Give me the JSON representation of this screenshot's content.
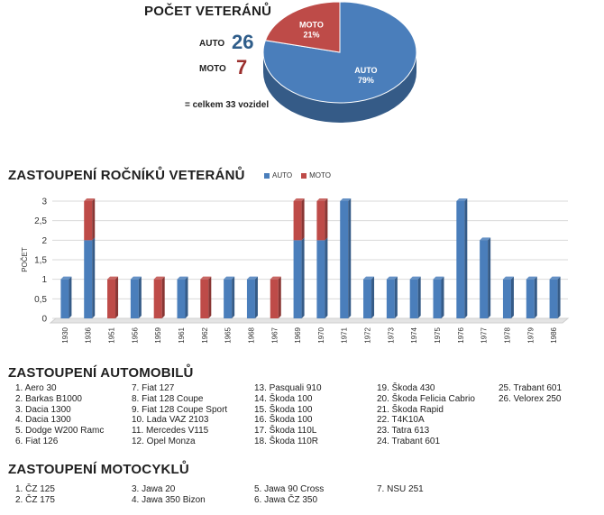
{
  "summary": {
    "title": "POČET VETERÁNŮ",
    "auto_label": "AUTO",
    "auto_count": "26",
    "moto_label": "MOTO",
    "moto_count": "7",
    "total_text": "= celkem 33 vozidel"
  },
  "colors": {
    "auto": "#4a7ebb",
    "moto": "#be4b48"
  },
  "chart_data": [
    {
      "type": "pie",
      "labels": [
        "AUTO",
        "MOTO"
      ],
      "values": [
        26,
        7
      ],
      "percent_labels": [
        "79%",
        "21%"
      ]
    },
    {
      "type": "bar",
      "stacked": true,
      "title": "ZASTOUPENÍ ROČNÍKŮ VETERÁNŮ",
      "ylabel": "POČET",
      "ylim": [
        0,
        3
      ],
      "yticks": [
        "0",
        "0,5",
        "1",
        "1,5",
        "2",
        "2,5",
        "3"
      ],
      "legend_position": "top",
      "grid": true,
      "categories": [
        "1930",
        "1936",
        "1951",
        "1956",
        "1959",
        "1961",
        "1962",
        "1965",
        "1968",
        "1967",
        "1969",
        "1970",
        "1971",
        "1972",
        "1973",
        "1974",
        "1975",
        "1976",
        "1977",
        "1978",
        "1979",
        "1986"
      ],
      "series": [
        {
          "name": "AUTO",
          "values": [
            1,
            2,
            0,
            1,
            0,
            1,
            0,
            1,
            1,
            0,
            2,
            2,
            3,
            1,
            1,
            1,
            1,
            3,
            2,
            1,
            1,
            1
          ]
        },
        {
          "name": "MOTO",
          "values": [
            0,
            1,
            1,
            0,
            1,
            0,
            1,
            0,
            0,
            1,
            1,
            1,
            0,
            0,
            0,
            0,
            0,
            0,
            0,
            0,
            0,
            0
          ]
        }
      ]
    }
  ],
  "cars": {
    "title": "ZASTOUPENÍ AUTOMOBILŮ",
    "columns": [
      [
        "1. Aero 30",
        "2. Barkas B1000",
        "3. Dacia 1300",
        "4. Dacia 1300",
        "5. Dodge W200 Ramc",
        "6. Fiat 126"
      ],
      [
        "7. Fiat 127",
        "8. Fiat 128 Coupe",
        "9. Fiat 128 Coupe Sport",
        "10. Lada VAZ 2103",
        "11. Mercedes V115",
        "12. Opel Monza"
      ],
      [
        "13. Pasquali 910",
        "14. Škoda 100",
        "15. Škoda 100",
        "16. Škoda 100",
        "17. Škoda 110L",
        "18. Škoda 110R"
      ],
      [
        "19. Škoda 430",
        "20. Škoda Felicia Cabrio",
        "21. Škoda Rapid",
        "22. T4K10A",
        "23. Tatra 613",
        "24. Trabant 601"
      ],
      [
        "25. Trabant 601",
        "26. Velorex 250"
      ]
    ]
  },
  "motorcycles": {
    "title": "ZASTOUPENÍ MOTOCYKLŮ",
    "columns": [
      [
        "1. ČZ 125",
        "2. ČZ 175"
      ],
      [
        "3. Jawa 20",
        "4. Jawa 350 Bizon"
      ],
      [
        "5. Jawa 90 Cross",
        "6. Jawa ČZ 350"
      ],
      [
        "7. NSU 251"
      ]
    ]
  }
}
